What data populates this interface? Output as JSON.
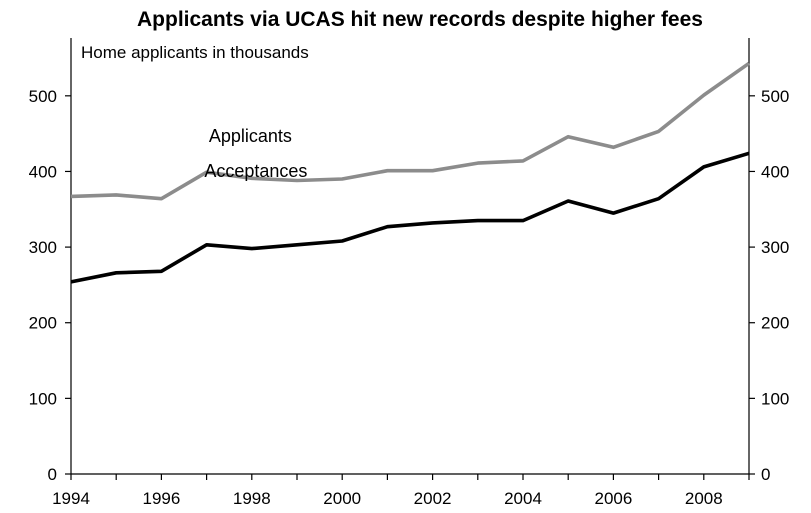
{
  "chart_data": {
    "type": "line",
    "title": "Applicants via UCAS hit new records despite higher fees",
    "subtitle": "Home applicants in thousands",
    "xlabel": "",
    "ylabel": "",
    "xlim": [
      1994,
      2009
    ],
    "ylim": [
      0,
      550
    ],
    "x_tick_labels": [
      "1994",
      "1996",
      "1998",
      "2000",
      "2002",
      "2004",
      "2006",
      "2008"
    ],
    "y_tick_labels": [
      "0",
      "100",
      "200",
      "300",
      "400",
      "500"
    ],
    "x": [
      1994,
      1995,
      1996,
      1997,
      1998,
      1999,
      2000,
      2001,
      2002,
      2003,
      2004,
      2005,
      2006,
      2007,
      2008,
      2009
    ],
    "series": [
      {
        "name": "Applicants",
        "color": "#8c8c8c",
        "values": [
          367,
          369,
          364,
          399,
          391,
          388,
          390,
          401,
          401,
          411,
          414,
          446,
          432,
          453,
          501,
          543
        ]
      },
      {
        "name": "Acceptances",
        "color": "#000000",
        "values": [
          254,
          266,
          268,
          303,
          298,
          303,
          308,
          327,
          332,
          335,
          335,
          361,
          345,
          364,
          406,
          424
        ]
      }
    ],
    "grid": false,
    "dual_y_axis": true
  }
}
